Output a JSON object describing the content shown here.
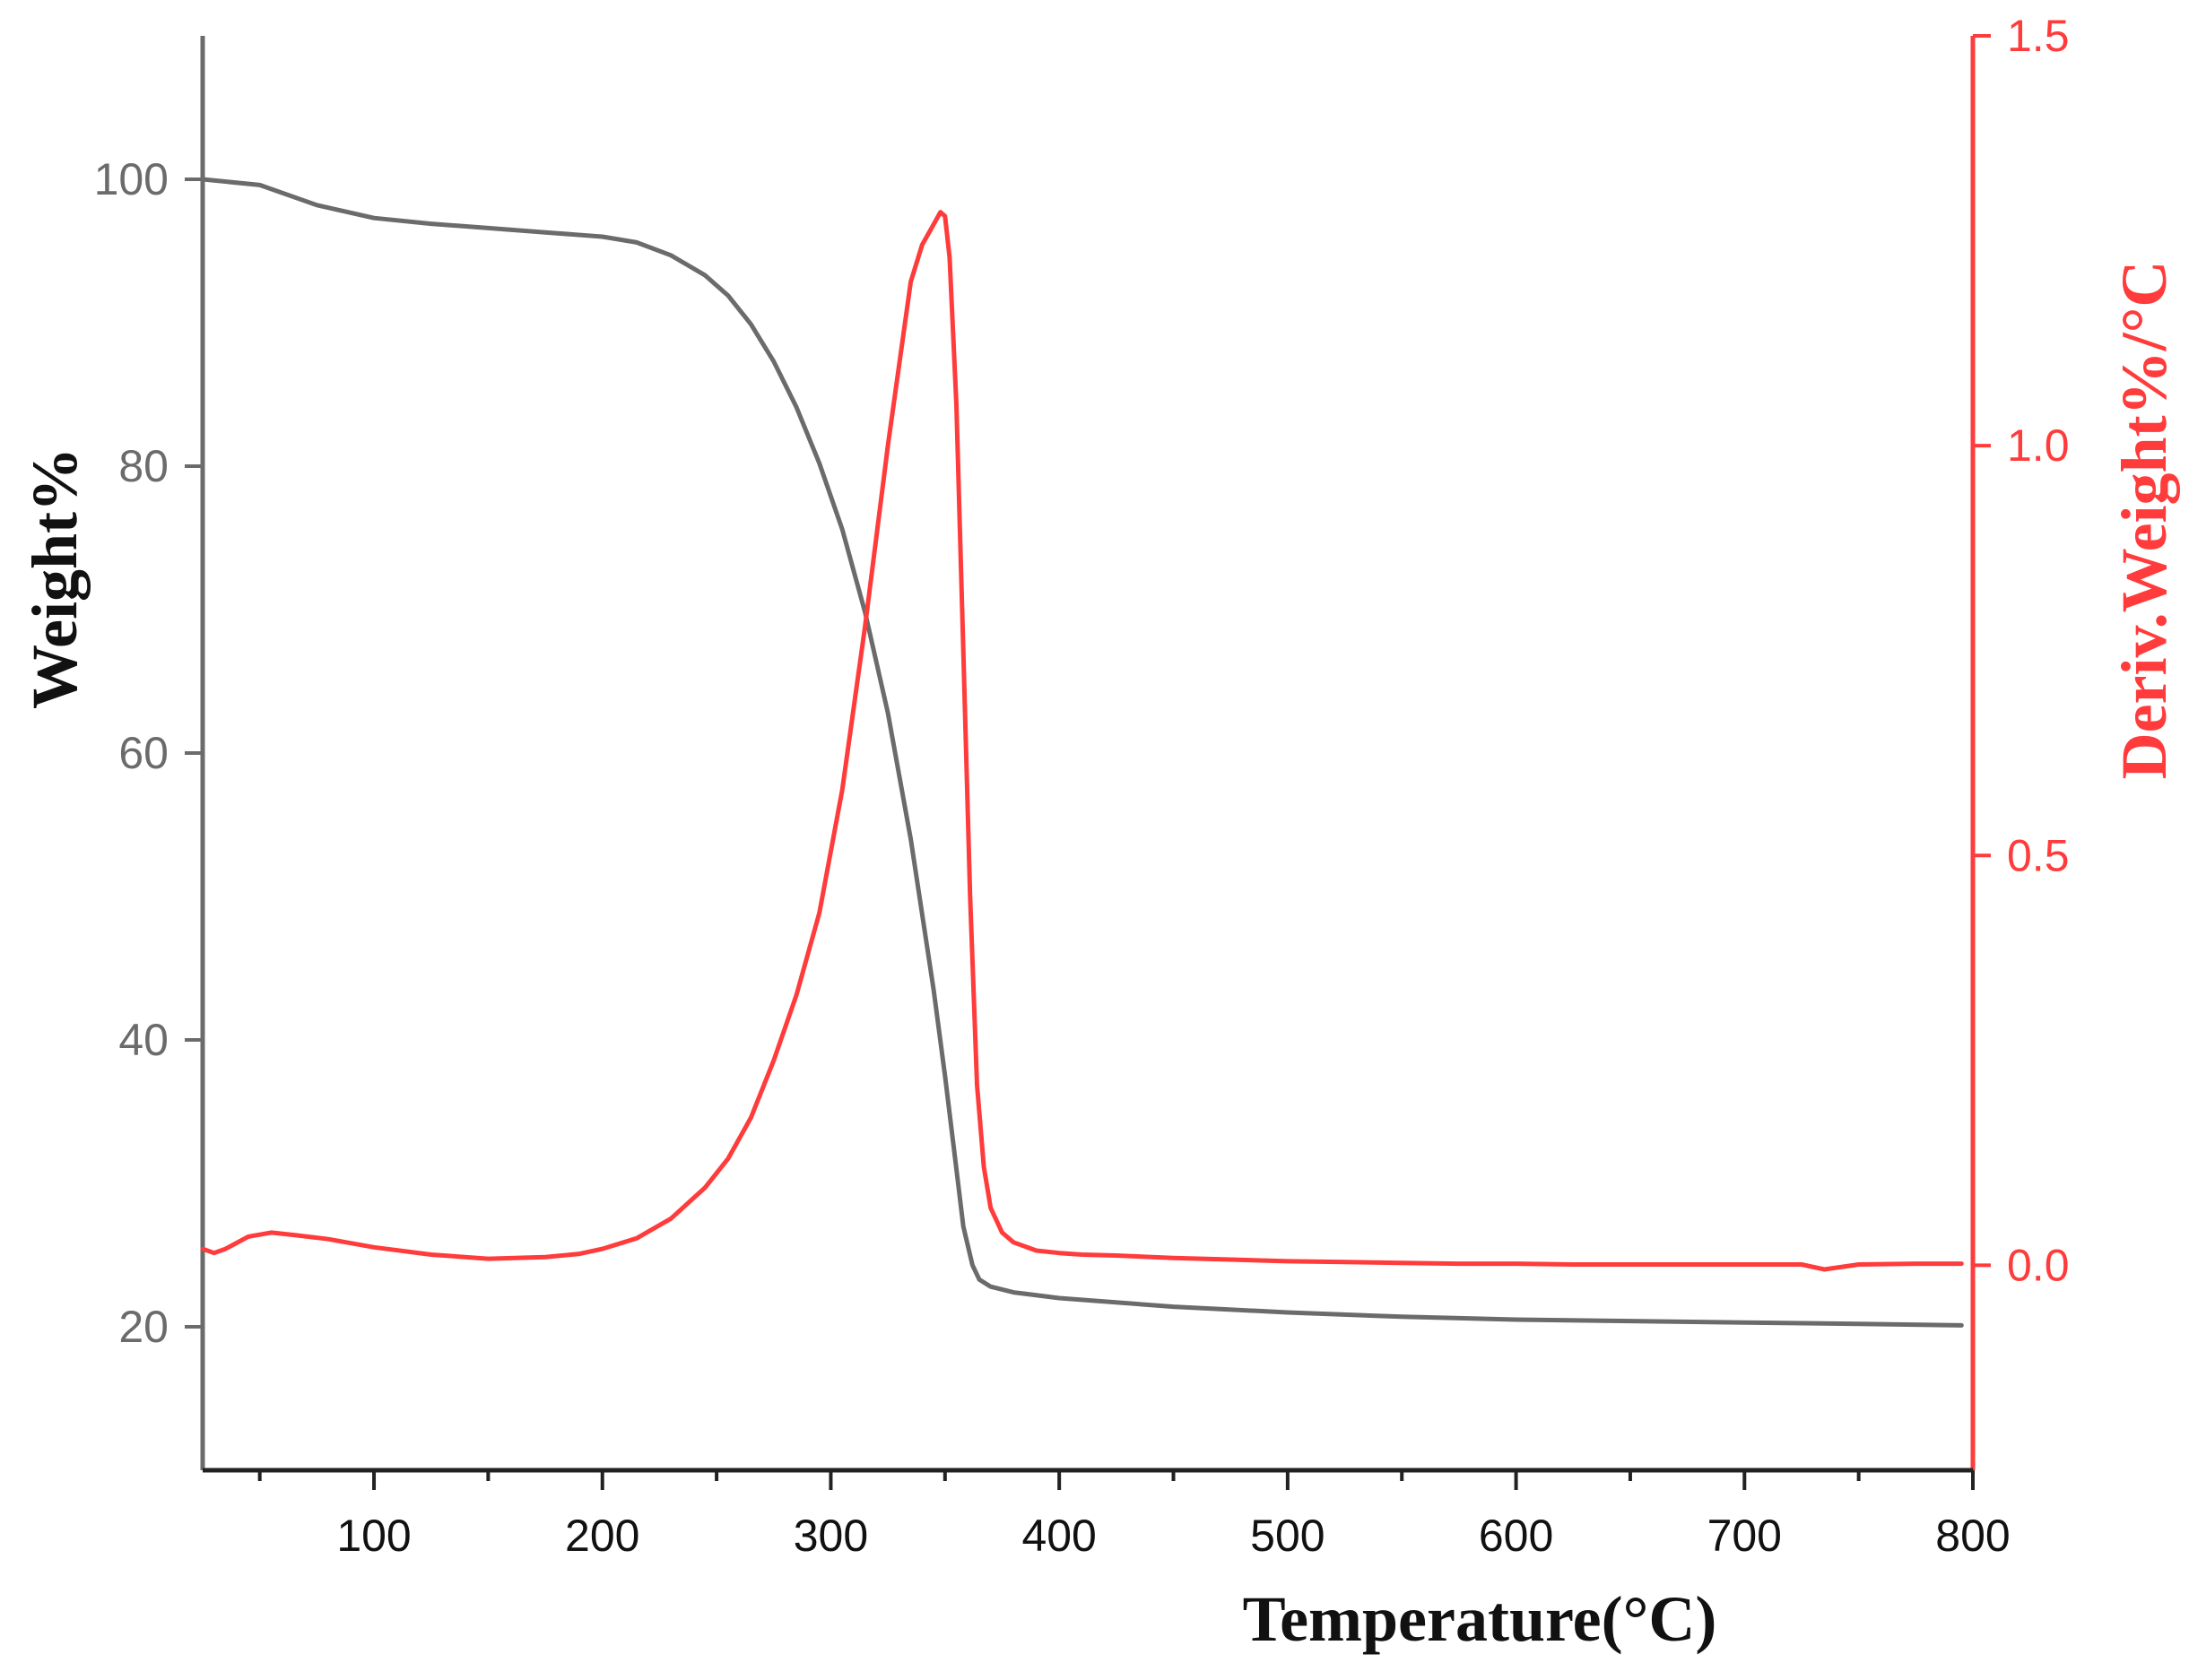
{
  "chart_data": {
    "type": "line",
    "xlabel": "Temperature(°C)",
    "ylabel_left": "Weight%",
    "ylabel_right": "Deriv.Weight%/°C",
    "xlim": [
      25,
      800
    ],
    "ylim_left": [
      10,
      110
    ],
    "ylim_right": [
      -0.25,
      1.5
    ],
    "x_ticks": [
      100,
      200,
      300,
      400,
      500,
      600,
      700,
      800
    ],
    "x_minor_ticks": [
      50,
      150,
      250,
      350,
      450,
      550,
      650,
      750
    ],
    "y_left_ticks": [
      20,
      40,
      60,
      80,
      100
    ],
    "y_right_ticks": [
      "0.0",
      "0.5",
      "1.0",
      "1.5"
    ],
    "grid": false,
    "colors": {
      "weight": "#6b6b6b",
      "deriv": "#ff3b3b",
      "left_axis": "#6b6b6b",
      "right_axis": "#ff3b3b",
      "bottom_axis": "#222222"
    },
    "series": [
      {
        "axis": "left",
        "color": "#6b6b6b",
        "x": [
          25,
          50,
          75,
          100,
          125,
          150,
          175,
          200,
          215,
          230,
          245,
          255,
          265,
          275,
          285,
          295,
          305,
          315,
          325,
          335,
          345,
          350,
          355,
          358,
          362,
          365,
          370,
          380,
          400,
          450,
          500,
          550,
          600,
          650,
          700,
          750,
          795
        ],
        "y": [
          100,
          99.6,
          98.2,
          97.3,
          96.9,
          96.6,
          96.3,
          96.0,
          95.6,
          94.7,
          93.3,
          91.9,
          89.9,
          87.3,
          84.1,
          80.2,
          75.6,
          69.8,
          62.8,
          54.0,
          43.5,
          37.5,
          31.0,
          27.0,
          24.3,
          23.3,
          22.8,
          22.4,
          22.0,
          21.4,
          21.0,
          20.7,
          20.5,
          20.4,
          20.3,
          20.2,
          20.1
        ]
      },
      {
        "axis": "right",
        "color": "#ff3b3b",
        "x": [
          25,
          30,
          35,
          45,
          55,
          65,
          80,
          100,
          125,
          150,
          175,
          190,
          200,
          215,
          230,
          245,
          255,
          265,
          275,
          285,
          295,
          305,
          315,
          325,
          335,
          340,
          345,
          348,
          350,
          352,
          355,
          358,
          361,
          364,
          367,
          370,
          375,
          380,
          390,
          400,
          410,
          425,
          450,
          475,
          500,
          525,
          550,
          575,
          600,
          625,
          650,
          675,
          700,
          725,
          735,
          750,
          775,
          795
        ],
        "y": [
          0.02,
          0.015,
          0.02,
          0.035,
          0.04,
          0.037,
          0.032,
          0.022,
          0.013,
          0.008,
          0.01,
          0.014,
          0.02,
          0.033,
          0.057,
          0.095,
          0.13,
          0.18,
          0.25,
          0.33,
          0.43,
          0.58,
          0.78,
          1.0,
          1.2,
          1.245,
          1.27,
          1.285,
          1.28,
          1.23,
          1.05,
          0.75,
          0.45,
          0.22,
          0.12,
          0.07,
          0.04,
          0.028,
          0.018,
          0.015,
          0.013,
          0.012,
          0.009,
          0.007,
          0.005,
          0.004,
          0.003,
          0.002,
          0.002,
          0.001,
          0.001,
          0.001,
          0.001,
          0.001,
          -0.005,
          0.001,
          0.002,
          0.002
        ]
      }
    ]
  }
}
